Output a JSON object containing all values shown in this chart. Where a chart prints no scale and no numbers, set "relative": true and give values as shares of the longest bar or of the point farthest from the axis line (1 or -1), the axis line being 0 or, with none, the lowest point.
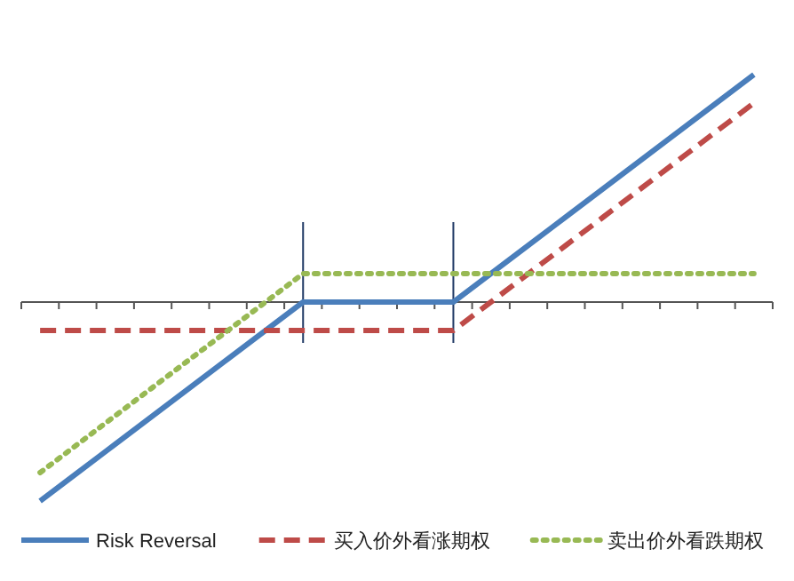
{
  "chart_data": {
    "type": "line",
    "relative": true,
    "categories": [
      null,
      null,
      null,
      null,
      null,
      null,
      null,
      null,
      null,
      null,
      null,
      null,
      null,
      null,
      null,
      null,
      null,
      null,
      null,
      null
    ],
    "series": [
      {
        "name": "Risk Reversal",
        "color": "#4a7ebb",
        "line_style": "solid",
        "values": [
          -0.875,
          -0.75,
          -0.625,
          -0.5,
          -0.375,
          -0.25,
          -0.125,
          0,
          0,
          0,
          0,
          0,
          0.125,
          0.25,
          0.375,
          0.5,
          0.625,
          0.75,
          0.875,
          1.0
        ]
      },
      {
        "name": "买入价外看涨期权",
        "color": "#be4b48",
        "line_style": "dashed",
        "values": [
          -0.125,
          -0.125,
          -0.125,
          -0.125,
          -0.125,
          -0.125,
          -0.125,
          -0.125,
          -0.125,
          -0.125,
          -0.125,
          -0.125,
          0,
          0.125,
          0.25,
          0.375,
          0.5,
          0.625,
          0.75,
          0.875
        ]
      },
      {
        "name": "卖出价外看跌期权",
        "color": "#98b954",
        "line_style": "dotted",
        "values": [
          -0.75,
          -0.625,
          -0.5,
          -0.375,
          -0.25,
          -0.125,
          0,
          0.125,
          0.125,
          0.125,
          0.125,
          0.125,
          0.125,
          0.125,
          0.125,
          0.125,
          0.125,
          0.125,
          0.125,
          0.125
        ]
      }
    ],
    "legend": "bottom",
    "marker": "none"
  }
}
